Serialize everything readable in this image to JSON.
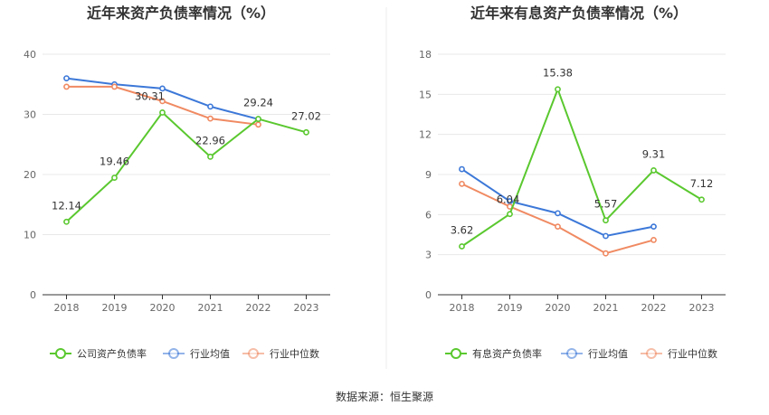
{
  "source": "数据来源：恒生聚源",
  "chart_data": [
    {
      "type": "line",
      "title": "近年来资产负债率情况（%）",
      "categories": [
        "2018",
        "2019",
        "2020",
        "2021",
        "2022",
        "2023"
      ],
      "ylim": [
        0,
        40
      ],
      "yticks": [
        0,
        10,
        20,
        30,
        40
      ],
      "grid": true,
      "legend_position": "bottom",
      "series": [
        {
          "name": "公司资产负债率",
          "color": "#5ac82f",
          "values": [
            12.14,
            19.46,
            30.31,
            22.96,
            29.24,
            27.02
          ],
          "labels": [
            "12.14",
            "19.46",
            "30.31",
            "22.96",
            "29.24",
            "27.02"
          ]
        },
        {
          "name": "行业均值",
          "color": "#3c78d8",
          "values": [
            36.0,
            35.0,
            34.3,
            31.3,
            29.2,
            null
          ]
        },
        {
          "name": "行业中位数",
          "color": "#f08a62",
          "values": [
            34.6,
            34.6,
            32.2,
            29.3,
            28.3,
            null
          ]
        }
      ]
    },
    {
      "type": "line",
      "title": "近年来有息资产负债率情况（%）",
      "categories": [
        "2018",
        "2019",
        "2020",
        "2021",
        "2022",
        "2023"
      ],
      "ylim": [
        0,
        18
      ],
      "yticks": [
        0,
        3,
        6,
        9,
        12,
        15,
        18
      ],
      "grid": true,
      "legend_position": "bottom",
      "series": [
        {
          "name": "有息资产负债率",
          "color": "#5ac82f",
          "values": [
            3.62,
            6.04,
            15.38,
            5.57,
            9.31,
            7.12
          ],
          "labels": [
            "3.62",
            "6.04",
            "15.38",
            "5.57",
            "9.31",
            "7.12"
          ]
        },
        {
          "name": "行业均值",
          "color": "#3c78d8",
          "values": [
            9.4,
            7.0,
            6.1,
            4.4,
            5.1,
            null
          ]
        },
        {
          "name": "行业中位数",
          "color": "#f08a62",
          "values": [
            8.3,
            6.6,
            5.1,
            3.1,
            4.1,
            null
          ]
        }
      ]
    }
  ]
}
